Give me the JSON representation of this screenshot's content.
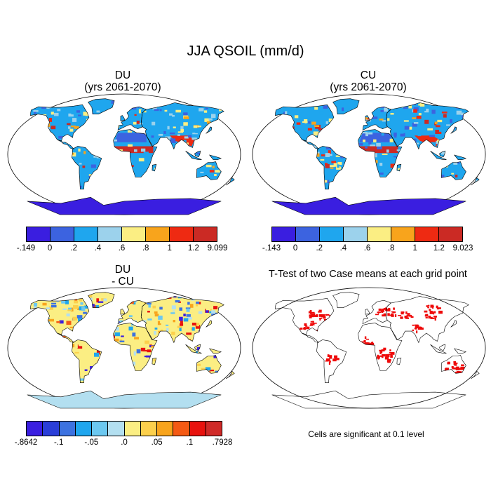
{
  "title": "JJA QSOIL (mm/d)",
  "panels": {
    "du": {
      "line1": "DU",
      "line2": "(yrs 2061-2070)"
    },
    "cu": {
      "line1": "CU",
      "line2": "(yrs 2061-2070)"
    },
    "diff": {
      "line1": "DU",
      "line2": "- CU"
    },
    "ttest": {
      "title": "T-Test of two Case means at each grid point"
    }
  },
  "colorbar_du": {
    "colors": [
      "#3a1ee0",
      "#3c63e0",
      "#1fa6ee",
      "#9cd2ec",
      "#fbee83",
      "#f8a41c",
      "#ee2a12",
      "#cb2a24"
    ],
    "ticks": [
      "-.149",
      "0",
      ".2",
      ".4",
      ".6",
      ".8",
      "1",
      "1.2",
      "9.099"
    ]
  },
  "colorbar_cu": {
    "colors": [
      "#3a1ee0",
      "#3c63e0",
      "#1fa6ee",
      "#9cd2ec",
      "#fbee83",
      "#f8a41c",
      "#ee2a12",
      "#cb2a24"
    ],
    "ticks": [
      "-.143",
      "0",
      ".2",
      ".4",
      ".6",
      ".8",
      "1",
      "1.2",
      "9.023"
    ]
  },
  "colorbar_diff": {
    "colors": [
      "#3a1ee0",
      "#2a3ed8",
      "#3c72e0",
      "#1fa6ee",
      "#6cc8f0",
      "#b3dff0",
      "#fbee83",
      "#fcd04c",
      "#f8a41c",
      "#f45a14",
      "#e8120e",
      "#d02a28"
    ],
    "ticks": [
      "-.8642",
      "-.1",
      "-.05",
      ".0",
      ".05",
      ".1",
      ".7928"
    ]
  },
  "note": "Cells are significant at 0.1 level"
}
